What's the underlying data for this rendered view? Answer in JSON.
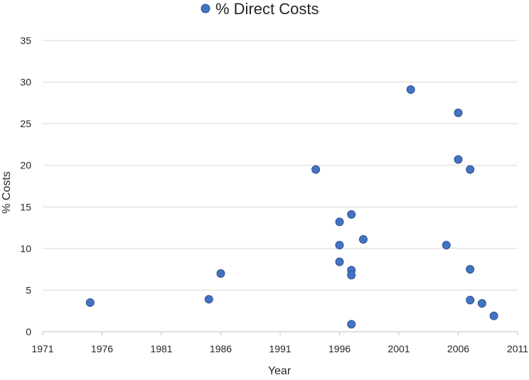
{
  "chart_data": {
    "type": "scatter",
    "title": "",
    "xlabel": "Year",
    "ylabel": "% Costs",
    "xlim": [
      1971,
      2011
    ],
    "ylim": [
      0,
      35
    ],
    "xticks": [
      1971,
      1976,
      1981,
      1986,
      1991,
      1996,
      2001,
      2006,
      2011
    ],
    "yticks": [
      0,
      5,
      10,
      15,
      20,
      25,
      30,
      35
    ],
    "grid": "horizontal",
    "legend_position": "top",
    "series": [
      {
        "name": "% Direct Costs",
        "color": "#4472C4",
        "edge_color": "#2F528F",
        "points": [
          {
            "x": 1975,
            "y": 3.5
          },
          {
            "x": 1985,
            "y": 3.9
          },
          {
            "x": 1986,
            "y": 7.0
          },
          {
            "x": 1994,
            "y": 19.5
          },
          {
            "x": 1996,
            "y": 13.2
          },
          {
            "x": 1996,
            "y": 10.4
          },
          {
            "x": 1996,
            "y": 8.4
          },
          {
            "x": 1997,
            "y": 14.1
          },
          {
            "x": 1997,
            "y": 7.4
          },
          {
            "x": 1997,
            "y": 6.8
          },
          {
            "x": 1997,
            "y": 0.9
          },
          {
            "x": 1998,
            "y": 11.1
          },
          {
            "x": 2002,
            "y": 29.1
          },
          {
            "x": 2005,
            "y": 10.4
          },
          {
            "x": 2006,
            "y": 26.3
          },
          {
            "x": 2006,
            "y": 20.7
          },
          {
            "x": 2007,
            "y": 19.5
          },
          {
            "x": 2007,
            "y": 7.5
          },
          {
            "x": 2007,
            "y": 3.8
          },
          {
            "x": 2008,
            "y": 3.4
          },
          {
            "x": 2009,
            "y": 1.9
          }
        ]
      }
    ]
  },
  "colors": {
    "gridline": "#D9D9D9",
    "axis": "#BFBFBF",
    "text": "#262626"
  }
}
